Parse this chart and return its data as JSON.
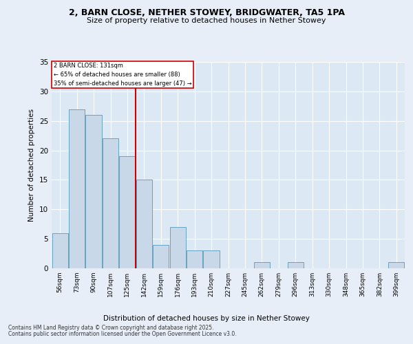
{
  "title_line1": "2, BARN CLOSE, NETHER STOWEY, BRIDGWATER, TA5 1PA",
  "title_line2": "Size of property relative to detached houses in Nether Stowey",
  "xlabel": "Distribution of detached houses by size in Nether Stowey",
  "ylabel": "Number of detached properties",
  "categories": [
    "56sqm",
    "73sqm",
    "90sqm",
    "107sqm",
    "125sqm",
    "142sqm",
    "159sqm",
    "176sqm",
    "193sqm",
    "210sqm",
    "227sqm",
    "245sqm",
    "262sqm",
    "279sqm",
    "296sqm",
    "313sqm",
    "330sqm",
    "348sqm",
    "365sqm",
    "382sqm",
    "399sqm"
  ],
  "values": [
    6,
    27,
    26,
    22,
    19,
    15,
    4,
    7,
    3,
    3,
    0,
    0,
    1,
    0,
    1,
    0,
    0,
    0,
    0,
    0,
    1
  ],
  "bar_color": "#c8d8e8",
  "bar_edge_color": "#5599bb",
  "reference_line_x": 4.5,
  "annotation_line1": "2 BARN CLOSE: 131sqm",
  "annotation_line2": "← 65% of detached houses are smaller (88)",
  "annotation_line3": "35% of semi-detached houses are larger (47) →",
  "annotation_box_color": "#ffffff",
  "annotation_box_edge": "#cc0000",
  "vline_color": "#cc0000",
  "ylim": [
    0,
    35
  ],
  "yticks": [
    0,
    5,
    10,
    15,
    20,
    25,
    30,
    35
  ],
  "background_color": "#dce8f4",
  "fig_background_color": "#e8eef8",
  "grid_color": "#ffffff",
  "footer_line1": "Contains HM Land Registry data © Crown copyright and database right 2025.",
  "footer_line2": "Contains public sector information licensed under the Open Government Licence v3.0."
}
